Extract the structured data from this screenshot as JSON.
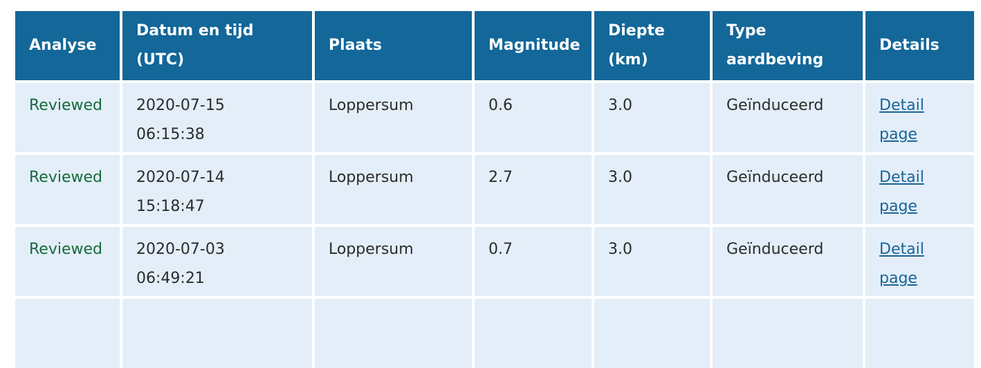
{
  "headers": [
    "Analyse",
    "Datum en tijd (UTC)",
    "Plaats",
    "Magnitude",
    "Diepte (km)",
    "Type aardbeving",
    "Details"
  ],
  "rows": [
    {
      "analyse": "Reviewed",
      "date": "2020-07-15",
      "time": "06:15:38",
      "plaats": "Loppersum",
      "magnitude": "0.6",
      "diepte": "3.0",
      "type": "Geïnduceerd",
      "details": "Detail page"
    },
    {
      "analyse": "Reviewed",
      "date": "2020-07-14",
      "time": "15:18:47",
      "plaats": "Loppersum",
      "magnitude": "2.7",
      "diepte": "3.0",
      "type": "Geïnduceerd",
      "details": "Detail page"
    },
    {
      "analyse": "Reviewed",
      "date": "2020-07-03",
      "time": "06:49:21",
      "plaats": "Loppersum",
      "magnitude": "0.7",
      "diepte": "3.0",
      "type": "Geïnduceerd",
      "details": "Detail page"
    }
  ],
  "colors": {
    "header_bg": "#136799",
    "row_bg": "#e3eef8",
    "reviewed": "#17693a",
    "link": "#1a6497"
  }
}
